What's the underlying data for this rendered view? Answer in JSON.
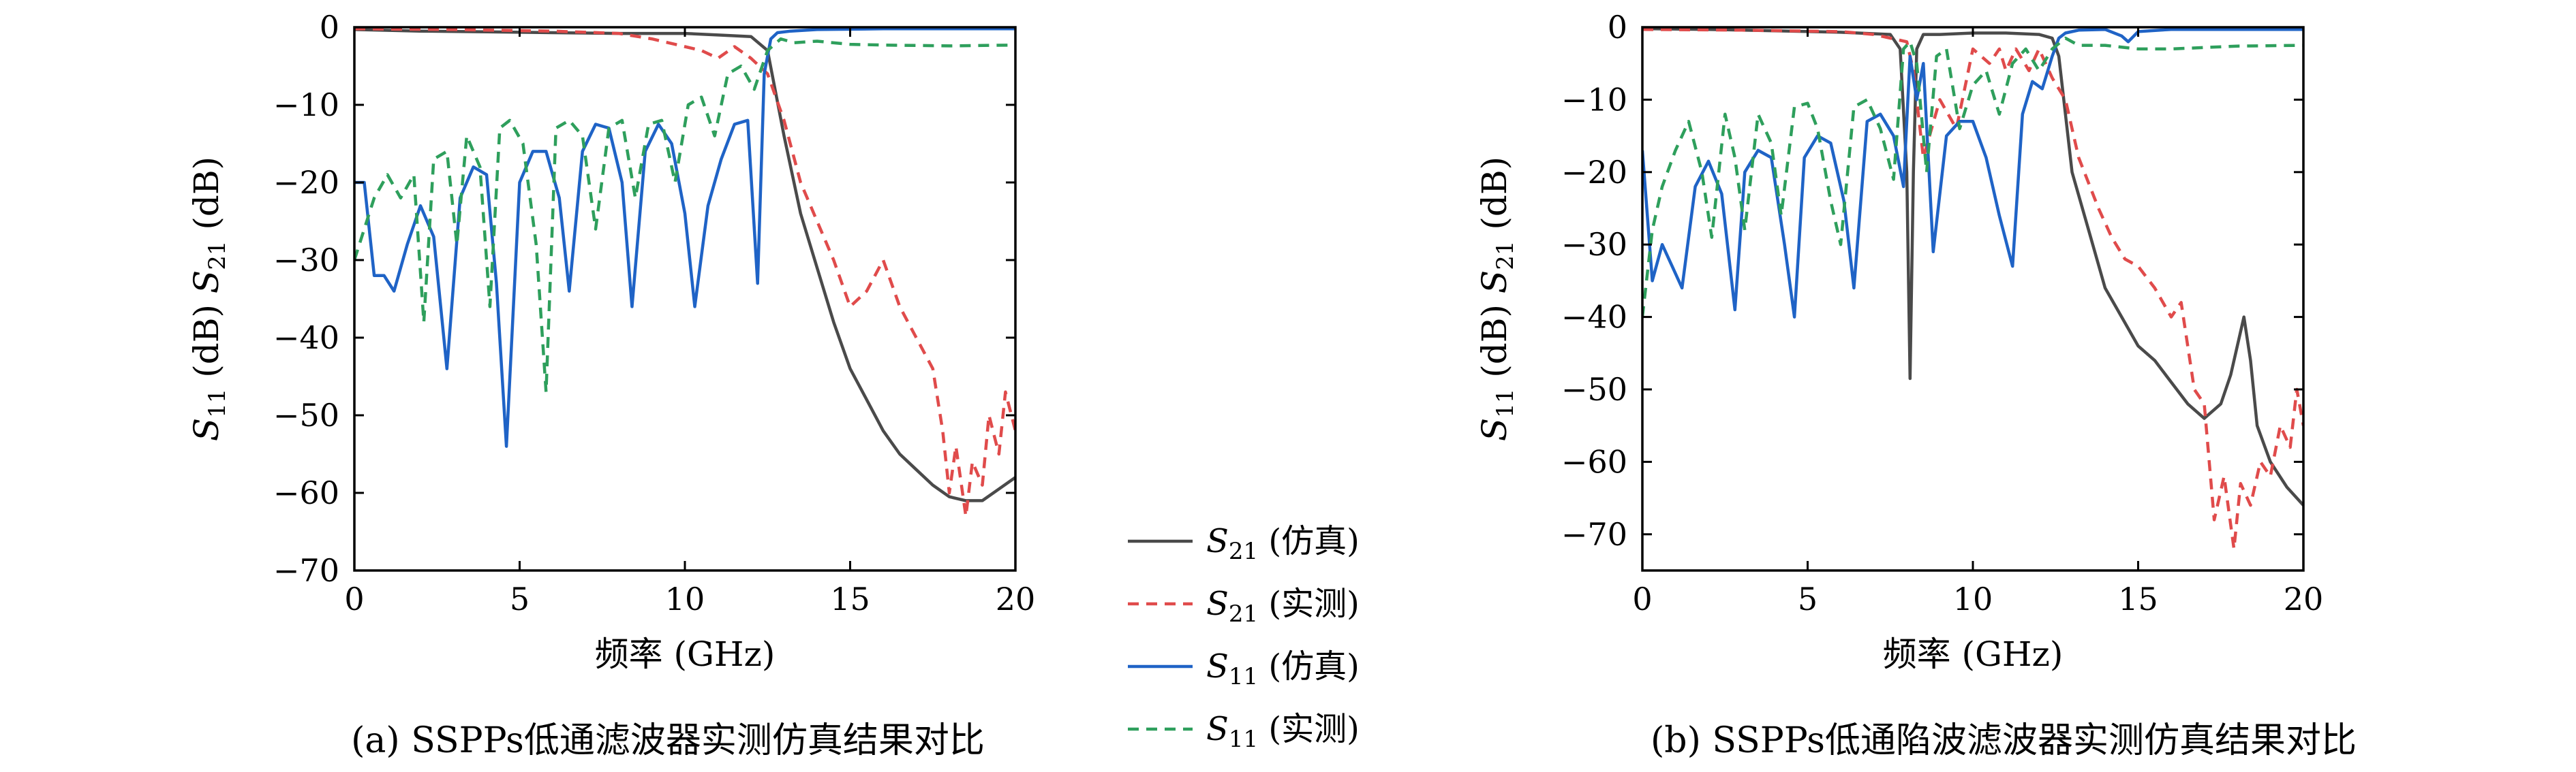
{
  "legend": [
    {
      "sym": "S",
      "sub": "21",
      "paren": "(仿真)",
      "color": "#4a4a4a",
      "dash": "solid"
    },
    {
      "sym": "S",
      "sub": "21",
      "paren": "(实测)",
      "color": "#e04b4b",
      "dash": "dashed"
    },
    {
      "sym": "S",
      "sub": "11",
      "paren": "(仿真)",
      "color": "#1f63c6",
      "dash": "solid"
    },
    {
      "sym": "S",
      "sub": "11",
      "paren": "(实测)",
      "color": "#2e9f5c",
      "dash": "dashed"
    }
  ],
  "chart_data": [
    {
      "type": "line",
      "caption": "(a) SSPPs低通滤波器实测仿真结果对比",
      "xlabel": "频率 (GHz)",
      "ylabel": "S11 (dB) S21 (dB)",
      "xlim": [
        0,
        20
      ],
      "ylim": [
        -70,
        0
      ],
      "xticks": [
        0,
        5,
        10,
        15,
        20
      ],
      "yticks": [
        0,
        -10,
        -20,
        -30,
        -40,
        -50,
        -60,
        -70
      ],
      "grid": false,
      "series": [
        {
          "name": "S21 (仿真)",
          "color": "#4a4a4a",
          "dash": "solid",
          "x": [
            0,
            2,
            4,
            6,
            8,
            10,
            11,
            12,
            12.5,
            13,
            13.5,
            14,
            14.5,
            15,
            15.5,
            16,
            16.5,
            17,
            17.5,
            18,
            18.5,
            19,
            19.5,
            20
          ],
          "y": [
            -0.3,
            -0.5,
            -0.6,
            -0.7,
            -0.8,
            -0.8,
            -1,
            -1.2,
            -3,
            -14,
            -24,
            -31,
            -38,
            -44,
            -48,
            -52,
            -55,
            -57,
            -59,
            -60.5,
            -61,
            -61,
            -59.5,
            -58
          ]
        },
        {
          "name": "S21 (实测)",
          "color": "#e04b4b",
          "dash": "dashed",
          "x": [
            0,
            3,
            6,
            8,
            9,
            9.5,
            10,
            10.5,
            11,
            11.5,
            12,
            12.5,
            13,
            13.5,
            14,
            14.5,
            15,
            15.5,
            16,
            16.5,
            17,
            17.5,
            17.8,
            18,
            18.2,
            18.5,
            18.7,
            19,
            19.2,
            19.5,
            19.7,
            20
          ],
          "y": [
            -0.2,
            -0.3,
            -0.5,
            -0.8,
            -1.5,
            -2,
            -2.5,
            -3,
            -4,
            -2.5,
            -4,
            -6,
            -12,
            -20,
            -25,
            -30,
            -36,
            -34,
            -30,
            -36,
            -40,
            -44,
            -52,
            -60,
            -54,
            -63,
            -56,
            -59,
            -50,
            -55,
            -47,
            -52
          ]
        },
        {
          "name": "S11 (仿真)",
          "color": "#1f63c6",
          "dash": "solid",
          "x": [
            0,
            0.3,
            0.6,
            0.9,
            1.2,
            1.6,
            2,
            2.4,
            2.8,
            3.2,
            3.6,
            4,
            4.3,
            4.6,
            5,
            5.4,
            5.8,
            6.2,
            6.5,
            6.9,
            7.3,
            7.7,
            8.1,
            8.4,
            8.8,
            9.2,
            9.6,
            10,
            10.3,
            10.7,
            11.1,
            11.5,
            11.9,
            12.2,
            12.4,
            12.6,
            12.8,
            13.2,
            14,
            16,
            18,
            20
          ],
          "y": [
            -20,
            -20,
            -32,
            -32,
            -34,
            -28,
            -23,
            -27,
            -44,
            -22,
            -18,
            -19,
            -33,
            -54,
            -20,
            -16,
            -16,
            -22,
            -34,
            -16,
            -12.5,
            -13,
            -20,
            -36,
            -16,
            -12.5,
            -15,
            -24,
            -36,
            -23,
            -17,
            -12.5,
            -12,
            -33,
            -6,
            -1.5,
            -0.7,
            -0.5,
            -0.3,
            -0.2,
            -0.2,
            -0.2
          ]
        },
        {
          "name": "S11 (实测)",
          "color": "#2e9f5c",
          "dash": "dashed",
          "x": [
            0,
            0.3,
            0.6,
            1,
            1.4,
            1.8,
            2.1,
            2.4,
            2.8,
            3.1,
            3.4,
            3.8,
            4.1,
            4.4,
            4.7,
            5.1,
            5.5,
            5.8,
            6.1,
            6.5,
            6.9,
            7.3,
            7.7,
            8.1,
            8.5,
            8.9,
            9.3,
            9.7,
            10.1,
            10.5,
            10.9,
            11.3,
            11.7,
            12.1,
            12.5,
            12.9,
            13.3,
            14,
            15,
            16,
            18,
            20
          ],
          "y": [
            -30,
            -26,
            -22,
            -19,
            -22,
            -19,
            -38,
            -17,
            -16,
            -28,
            -14,
            -18,
            -36,
            -13,
            -12,
            -15,
            -28,
            -47,
            -13,
            -12,
            -14,
            -26,
            -13,
            -12,
            -22,
            -12.5,
            -12,
            -20,
            -10,
            -9,
            -14,
            -6,
            -5,
            -8,
            -3,
            -1.5,
            -2,
            -1.8,
            -2.2,
            -2.3,
            -2.4,
            -2.3
          ]
        }
      ]
    },
    {
      "type": "line",
      "caption": "(b) SSPPs低通陷波滤波器实测仿真结果对比",
      "xlabel": "频率 (GHz)",
      "ylabel": "S11 (dB) S21 (dB)",
      "xlim": [
        0,
        20
      ],
      "ylim": [
        -75,
        0
      ],
      "xticks": [
        0,
        5,
        10,
        15,
        20
      ],
      "yticks": [
        0,
        -10,
        -20,
        -30,
        -40,
        -50,
        -60,
        -70
      ],
      "grid": false,
      "series": [
        {
          "name": "S21 (仿真)",
          "color": "#4a4a4a",
          "dash": "solid",
          "x": [
            0,
            2,
            4,
            6,
            7.5,
            7.8,
            8,
            8.1,
            8.2,
            8.3,
            8.5,
            9,
            10,
            11,
            12,
            12.4,
            12.6,
            12.8,
            13,
            13.5,
            14,
            14.5,
            15,
            15.5,
            16,
            16.5,
            17,
            17.5,
            17.8,
            18,
            18.2,
            18.4,
            18.6,
            19,
            19.5,
            20
          ],
          "y": [
            -0.2,
            -0.3,
            -0.5,
            -0.7,
            -1,
            -3,
            -20,
            -48.5,
            -20,
            -3,
            -1,
            -1,
            -0.8,
            -0.8,
            -1,
            -1.5,
            -4,
            -12,
            -20,
            -28,
            -36,
            -40,
            -44,
            -46,
            -49,
            -52,
            -54,
            -52,
            -48,
            -44,
            -40,
            -46,
            -55,
            -60,
            -63.5,
            -66
          ]
        },
        {
          "name": "S21 (实测)",
          "color": "#e04b4b",
          "dash": "dashed",
          "x": [
            0,
            3,
            6,
            7,
            7.5,
            8,
            8.2,
            8.5,
            9,
            9.5,
            10,
            10.5,
            10.8,
            11,
            11.3,
            11.7,
            12,
            12.4,
            12.8,
            13.2,
            13.8,
            14.2,
            14.6,
            15,
            15.5,
            16,
            16.3,
            16.7,
            17,
            17.3,
            17.6,
            17.9,
            18.1,
            18.4,
            18.7,
            19,
            19.3,
            19.6,
            19.8,
            20
          ],
          "y": [
            -0.3,
            -0.4,
            -0.6,
            -1,
            -1.5,
            -2,
            -6,
            -18,
            -10,
            -14,
            -3,
            -5,
            -3,
            -6,
            -3,
            -6,
            -3,
            -7,
            -10,
            -18,
            -25,
            -29,
            -32,
            -33,
            -36,
            -40,
            -38,
            -50,
            -52,
            -68,
            -62,
            -72,
            -63,
            -66,
            -60,
            -62,
            -55,
            -58,
            -50,
            -55
          ]
        },
        {
          "name": "S11 (仿真)",
          "color": "#1f63c6",
          "dash": "solid",
          "x": [
            0,
            0.3,
            0.6,
            0.9,
            1.2,
            1.6,
            2,
            2.4,
            2.8,
            3.1,
            3.5,
            3.9,
            4.3,
            4.6,
            4.9,
            5.3,
            5.7,
            6.1,
            6.4,
            6.8,
            7.2,
            7.6,
            7.9,
            8.1,
            8.3,
            8.5,
            8.8,
            9.2,
            9.6,
            10,
            10.4,
            10.8,
            11.2,
            11.5,
            11.8,
            12.1,
            12.4,
            12.6,
            12.8,
            13.2,
            14,
            14.5,
            14.7,
            15,
            16,
            18,
            20
          ],
          "y": [
            -17,
            -35,
            -30,
            -33,
            -36,
            -22,
            -18.5,
            -23,
            -39,
            -20,
            -17,
            -18,
            -30,
            -40,
            -18,
            -15,
            -16,
            -24,
            -36,
            -13,
            -12,
            -15,
            -22,
            -4,
            -10,
            -5,
            -31,
            -15,
            -13,
            -13,
            -18,
            -26,
            -33,
            -12,
            -7.5,
            -8.5,
            -4,
            -1.5,
            -0.8,
            -0.4,
            -0.3,
            -1.2,
            -2,
            -0.6,
            -0.3,
            -0.3,
            -0.3
          ]
        },
        {
          "name": "S11 (实测)",
          "color": "#2e9f5c",
          "dash": "dashed",
          "x": [
            0,
            0.3,
            0.6,
            1,
            1.4,
            1.8,
            2.1,
            2.5,
            2.8,
            3.1,
            3.5,
            3.9,
            4.2,
            4.6,
            5,
            5.3,
            5.7,
            6,
            6.4,
            6.8,
            7.2,
            7.6,
            7.9,
            8.1,
            8.3,
            8.6,
            8.9,
            9.2,
            9.6,
            10,
            10.4,
            10.8,
            11.2,
            11.6,
            12,
            12.4,
            12.8,
            13.2,
            14,
            15,
            16,
            18,
            20
          ],
          "y": [
            -40,
            -28,
            -22,
            -17,
            -13,
            -20,
            -29,
            -12,
            -18,
            -28,
            -12,
            -16,
            -26,
            -11,
            -10.5,
            -14,
            -24,
            -30,
            -11,
            -10,
            -14,
            -21,
            -3,
            -2,
            -5,
            -20,
            -4,
            -3,
            -14,
            -8,
            -6,
            -12,
            -5,
            -3,
            -6,
            -3,
            -1.5,
            -2.5,
            -2.5,
            -3,
            -3,
            -2.6,
            -2.5
          ]
        }
      ]
    }
  ]
}
